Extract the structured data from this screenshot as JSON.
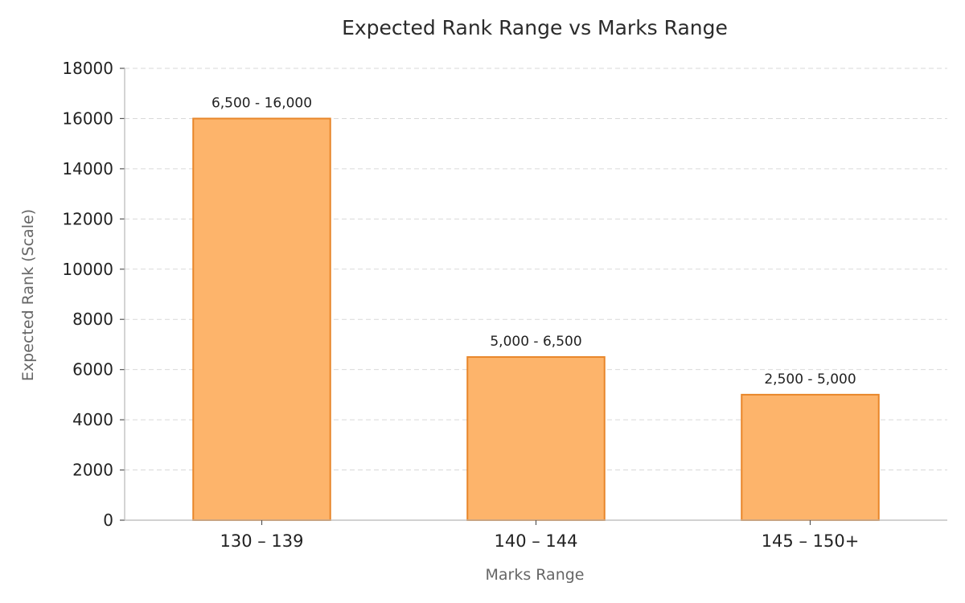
{
  "chart_data": {
    "type": "bar",
    "title": "Expected Rank Range vs Marks Range",
    "xlabel": "Marks Range",
    "ylabel": "Expected Rank (Scale)",
    "categories": [
      "130 – 139",
      "140 – 144",
      "145 – 150+"
    ],
    "values": [
      16000,
      6500,
      5000
    ],
    "data_labels": [
      "6,500 - 16,000",
      "5,000 - 6,500",
      "2,500 - 5,000"
    ],
    "ylim": [
      0,
      18000
    ],
    "yticks": [
      0,
      2000,
      4000,
      6000,
      8000,
      10000,
      12000,
      14000,
      16000,
      18000
    ],
    "grid": true,
    "legend": "none",
    "colors": {
      "bar_fill": "#fdb46b",
      "bar_edge": "#e8862a"
    }
  }
}
